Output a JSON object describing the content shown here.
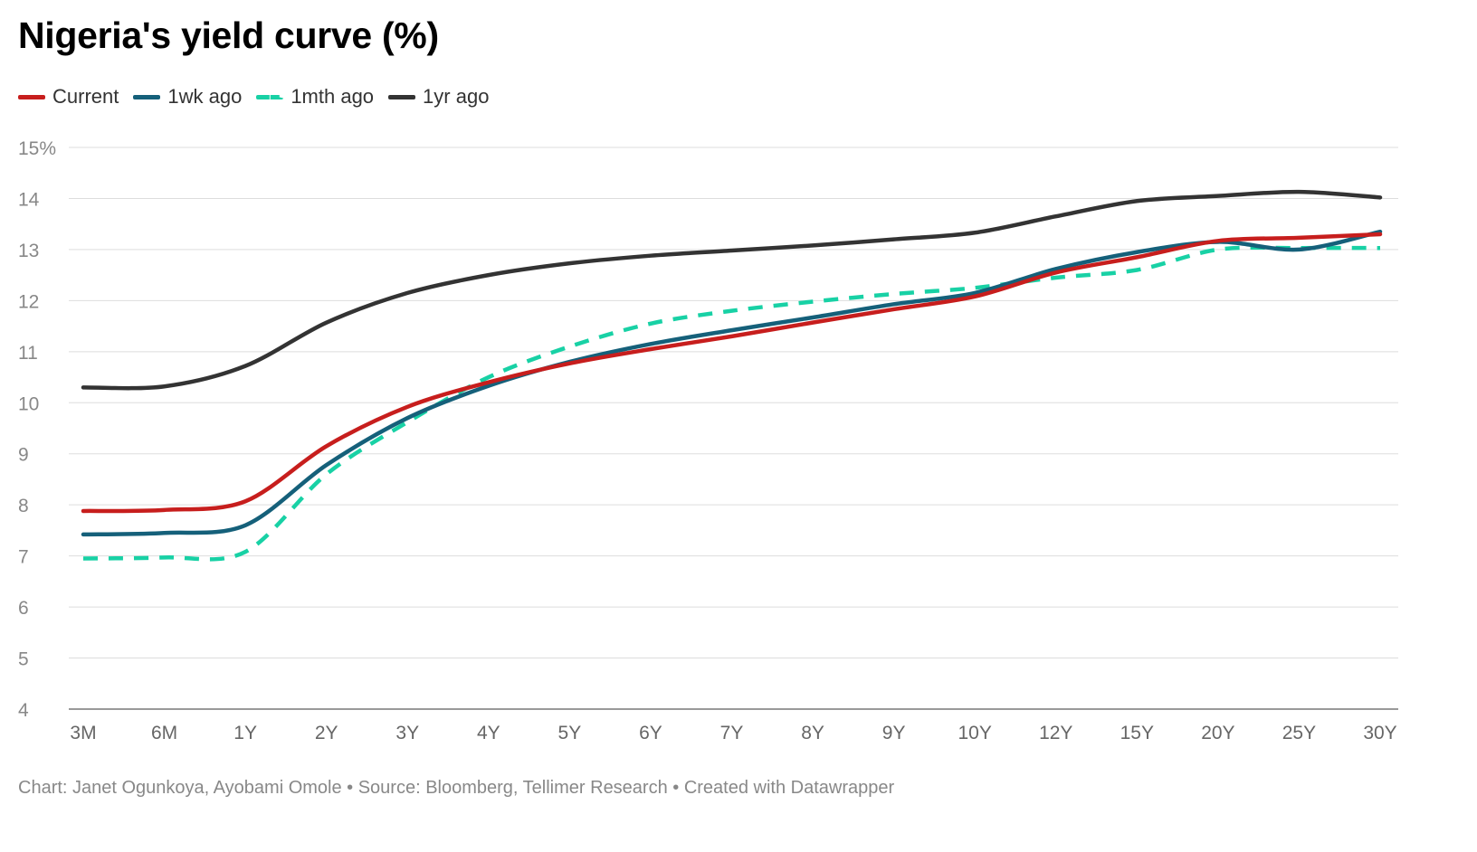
{
  "chart_data": {
    "type": "line",
    "title": "Nigeria's yield curve (%)",
    "categories": [
      "3M",
      "6M",
      "1Y",
      "2Y",
      "3Y",
      "4Y",
      "5Y",
      "6Y",
      "7Y",
      "8Y",
      "9Y",
      "10Y",
      "12Y",
      "15Y",
      "20Y",
      "25Y",
      "30Y"
    ],
    "ylim": [
      4,
      15
    ],
    "yticks": [
      4,
      5,
      6,
      7,
      8,
      9,
      10,
      11,
      12,
      13,
      14,
      15
    ],
    "ytick_labels": [
      "4",
      "5",
      "6",
      "7",
      "8",
      "9",
      "10",
      "11",
      "12",
      "13",
      "14",
      "15%"
    ],
    "grid": true,
    "legend_position": "top-left",
    "series": [
      {
        "name": "Current",
        "color": "#c71e1d",
        "dashed": false,
        "values": [
          7.88,
          7.9,
          8.07,
          9.15,
          9.92,
          10.4,
          10.77,
          11.05,
          11.3,
          11.57,
          11.83,
          12.08,
          12.55,
          12.85,
          13.17,
          13.23,
          13.3
        ]
      },
      {
        "name": "1wk ago",
        "color": "#15607a",
        "dashed": false,
        "values": [
          7.42,
          7.45,
          7.6,
          8.78,
          9.7,
          10.33,
          10.8,
          11.15,
          11.42,
          11.67,
          11.93,
          12.15,
          12.62,
          12.95,
          13.15,
          13.0,
          13.35
        ]
      },
      {
        "name": "1mth ago",
        "color": "#18d1a5",
        "dashed": true,
        "values": [
          6.95,
          6.97,
          7.08,
          8.6,
          9.62,
          10.5,
          11.1,
          11.55,
          11.8,
          11.98,
          12.13,
          12.25,
          12.45,
          12.6,
          13.0,
          13.03,
          13.03
        ]
      },
      {
        "name": "1yr ago",
        "color": "#333333",
        "dashed": false,
        "values": [
          10.3,
          10.32,
          10.72,
          11.57,
          12.15,
          12.5,
          12.73,
          12.88,
          12.98,
          13.08,
          13.2,
          13.33,
          13.65,
          13.95,
          14.05,
          14.13,
          14.02
        ]
      }
    ]
  },
  "footer": "Chart: Janet Ogunkoya, Ayobami Omole • Source: Bloomberg, Tellimer Research • Created with Datawrapper"
}
